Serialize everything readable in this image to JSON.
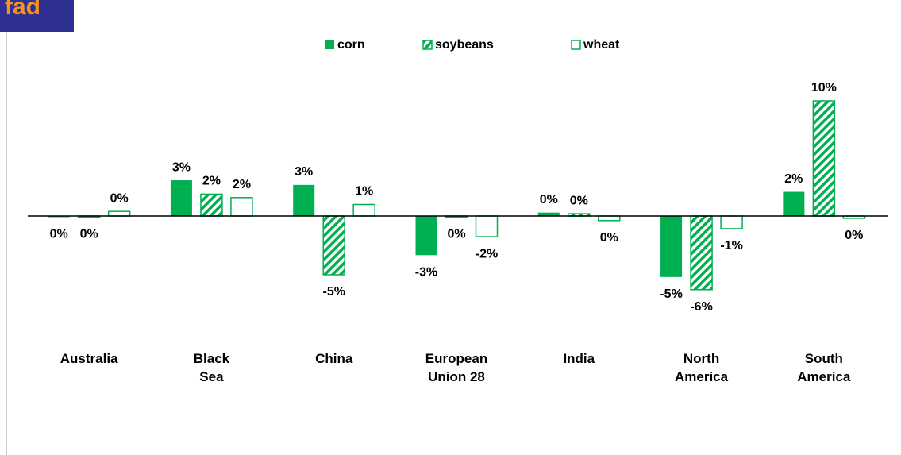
{
  "logo": "fad",
  "chart_data": {
    "type": "bar",
    "categories": [
      "Australia",
      "Black\nSea",
      "China",
      "European\nUnion 28",
      "India",
      "North\nAmerica",
      "South\nAmerica"
    ],
    "series": [
      {
        "name": "corn",
        "color": "#00b050",
        "style": "solid",
        "values": [
          -0.1,
          3.1,
          2.7,
          -3.4,
          0.3,
          -5.3,
          2.1
        ],
        "value_labels": [
          "0%",
          "3%",
          "3%",
          "-3%",
          "0%",
          "-5%",
          "2%"
        ]
      },
      {
        "name": "soybeans",
        "color": "#00b050",
        "style": "hatch",
        "values": [
          -0.1,
          1.9,
          -5.1,
          -0.1,
          0.2,
          -6.4,
          10.0
        ],
        "value_labels": [
          "0%",
          "2%",
          "-5%",
          "0%",
          "0%",
          "-6%",
          "10%"
        ]
      },
      {
        "name": "wheat",
        "color": "#00b050",
        "style": "outline",
        "values": [
          0.4,
          1.6,
          1.0,
          -1.8,
          -0.4,
          -1.1,
          -0.2
        ],
        "value_labels": [
          "0%",
          "2%",
          "1%",
          "-2%",
          "0%",
          "-1%",
          "0%"
        ]
      }
    ],
    "ylim": [
      -8,
      12
    ],
    "legend": "top"
  }
}
